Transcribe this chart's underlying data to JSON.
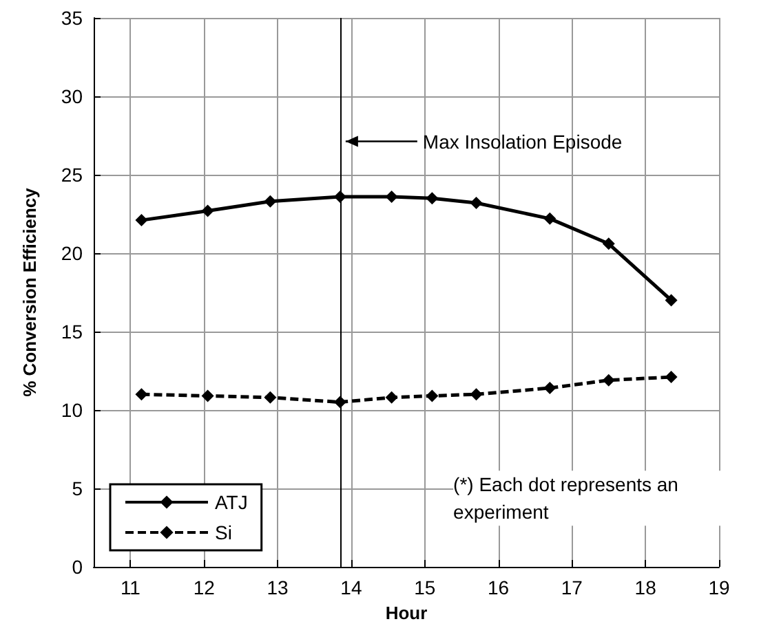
{
  "chart_data": {
    "type": "line",
    "xlabel": "Hour",
    "ylabel": "% Conversion Efficiency",
    "x": [
      11.15,
      12.05,
      12.9,
      13.85,
      14.55,
      15.1,
      15.7,
      16.7,
      17.5,
      18.35
    ],
    "series": [
      {
        "name": "ATJ",
        "color": "#000000",
        "line_style": "solid",
        "values": [
          22.1,
          22.7,
          23.3,
          23.6,
          23.6,
          23.5,
          23.2,
          22.2,
          20.6,
          17.0
        ]
      },
      {
        "name": "Si",
        "color": "#000000",
        "line_style": "dashed",
        "values": [
          11.0,
          10.9,
          10.8,
          10.5,
          10.8,
          10.9,
          11.0,
          11.4,
          11.9,
          12.1
        ]
      }
    ],
    "xlim": [
      10.5,
      19
    ],
    "xticks": [
      11,
      12,
      13,
      14,
      15,
      16,
      17,
      18,
      19
    ],
    "ylim": [
      0,
      35
    ],
    "yticks": [
      0,
      5,
      10,
      15,
      20,
      25,
      30,
      35
    ],
    "ref_lines": [
      {
        "axis": "x",
        "value": 13.85,
        "label": "Max Insolation Episode",
        "color": "#000000"
      }
    ],
    "annotations": [
      "(*) Each dot represents an experiment"
    ],
    "grid": true,
    "legend": "bottom left",
    "marker": "diamond"
  }
}
